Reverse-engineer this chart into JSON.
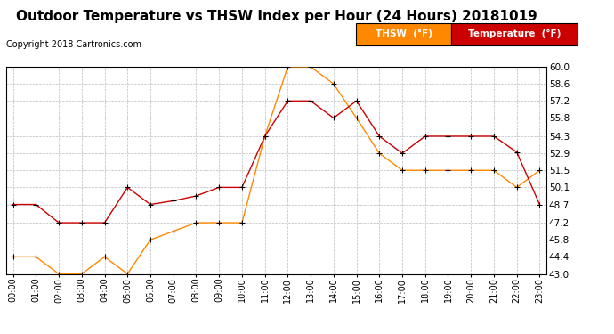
{
  "title": "Outdoor Temperature vs THSW Index per Hour (24 Hours) 20181019",
  "copyright": "Copyright 2018 Cartronics.com",
  "hours": [
    "00:00",
    "01:00",
    "02:00",
    "03:00",
    "04:00",
    "05:00",
    "06:00",
    "07:00",
    "08:00",
    "09:00",
    "10:00",
    "11:00",
    "12:00",
    "13:00",
    "14:00",
    "15:00",
    "16:00",
    "17:00",
    "18:00",
    "19:00",
    "20:00",
    "21:00",
    "22:00",
    "23:00"
  ],
  "temperature": [
    48.7,
    48.7,
    47.2,
    47.2,
    47.2,
    50.1,
    48.7,
    49.0,
    49.4,
    50.1,
    50.1,
    54.3,
    57.2,
    57.2,
    55.8,
    57.2,
    54.3,
    52.9,
    54.3,
    54.3,
    54.3,
    54.3,
    53.0,
    48.7
  ],
  "thsw": [
    44.4,
    44.4,
    43.0,
    43.0,
    44.4,
    43.0,
    45.8,
    46.5,
    47.2,
    47.2,
    47.2,
    54.3,
    60.0,
    60.0,
    58.6,
    55.8,
    52.9,
    51.5,
    51.5,
    51.5,
    51.5,
    51.5,
    50.1,
    51.5
  ],
  "temp_color": "#cc0000",
  "thsw_color": "#ff8800",
  "ylim_min": 43.0,
  "ylim_max": 60.0,
  "yticks": [
    43.0,
    44.4,
    45.8,
    47.2,
    48.7,
    50.1,
    51.5,
    52.9,
    54.3,
    55.8,
    57.2,
    58.6,
    60.0
  ],
  "bg_color": "#ffffff",
  "grid_color": "#bbbbbb",
  "title_fontsize": 11,
  "copyright_fontsize": 7,
  "legend_thsw_label": "THSW  (°F)",
  "legend_temp_label": "Temperature  (°F)"
}
